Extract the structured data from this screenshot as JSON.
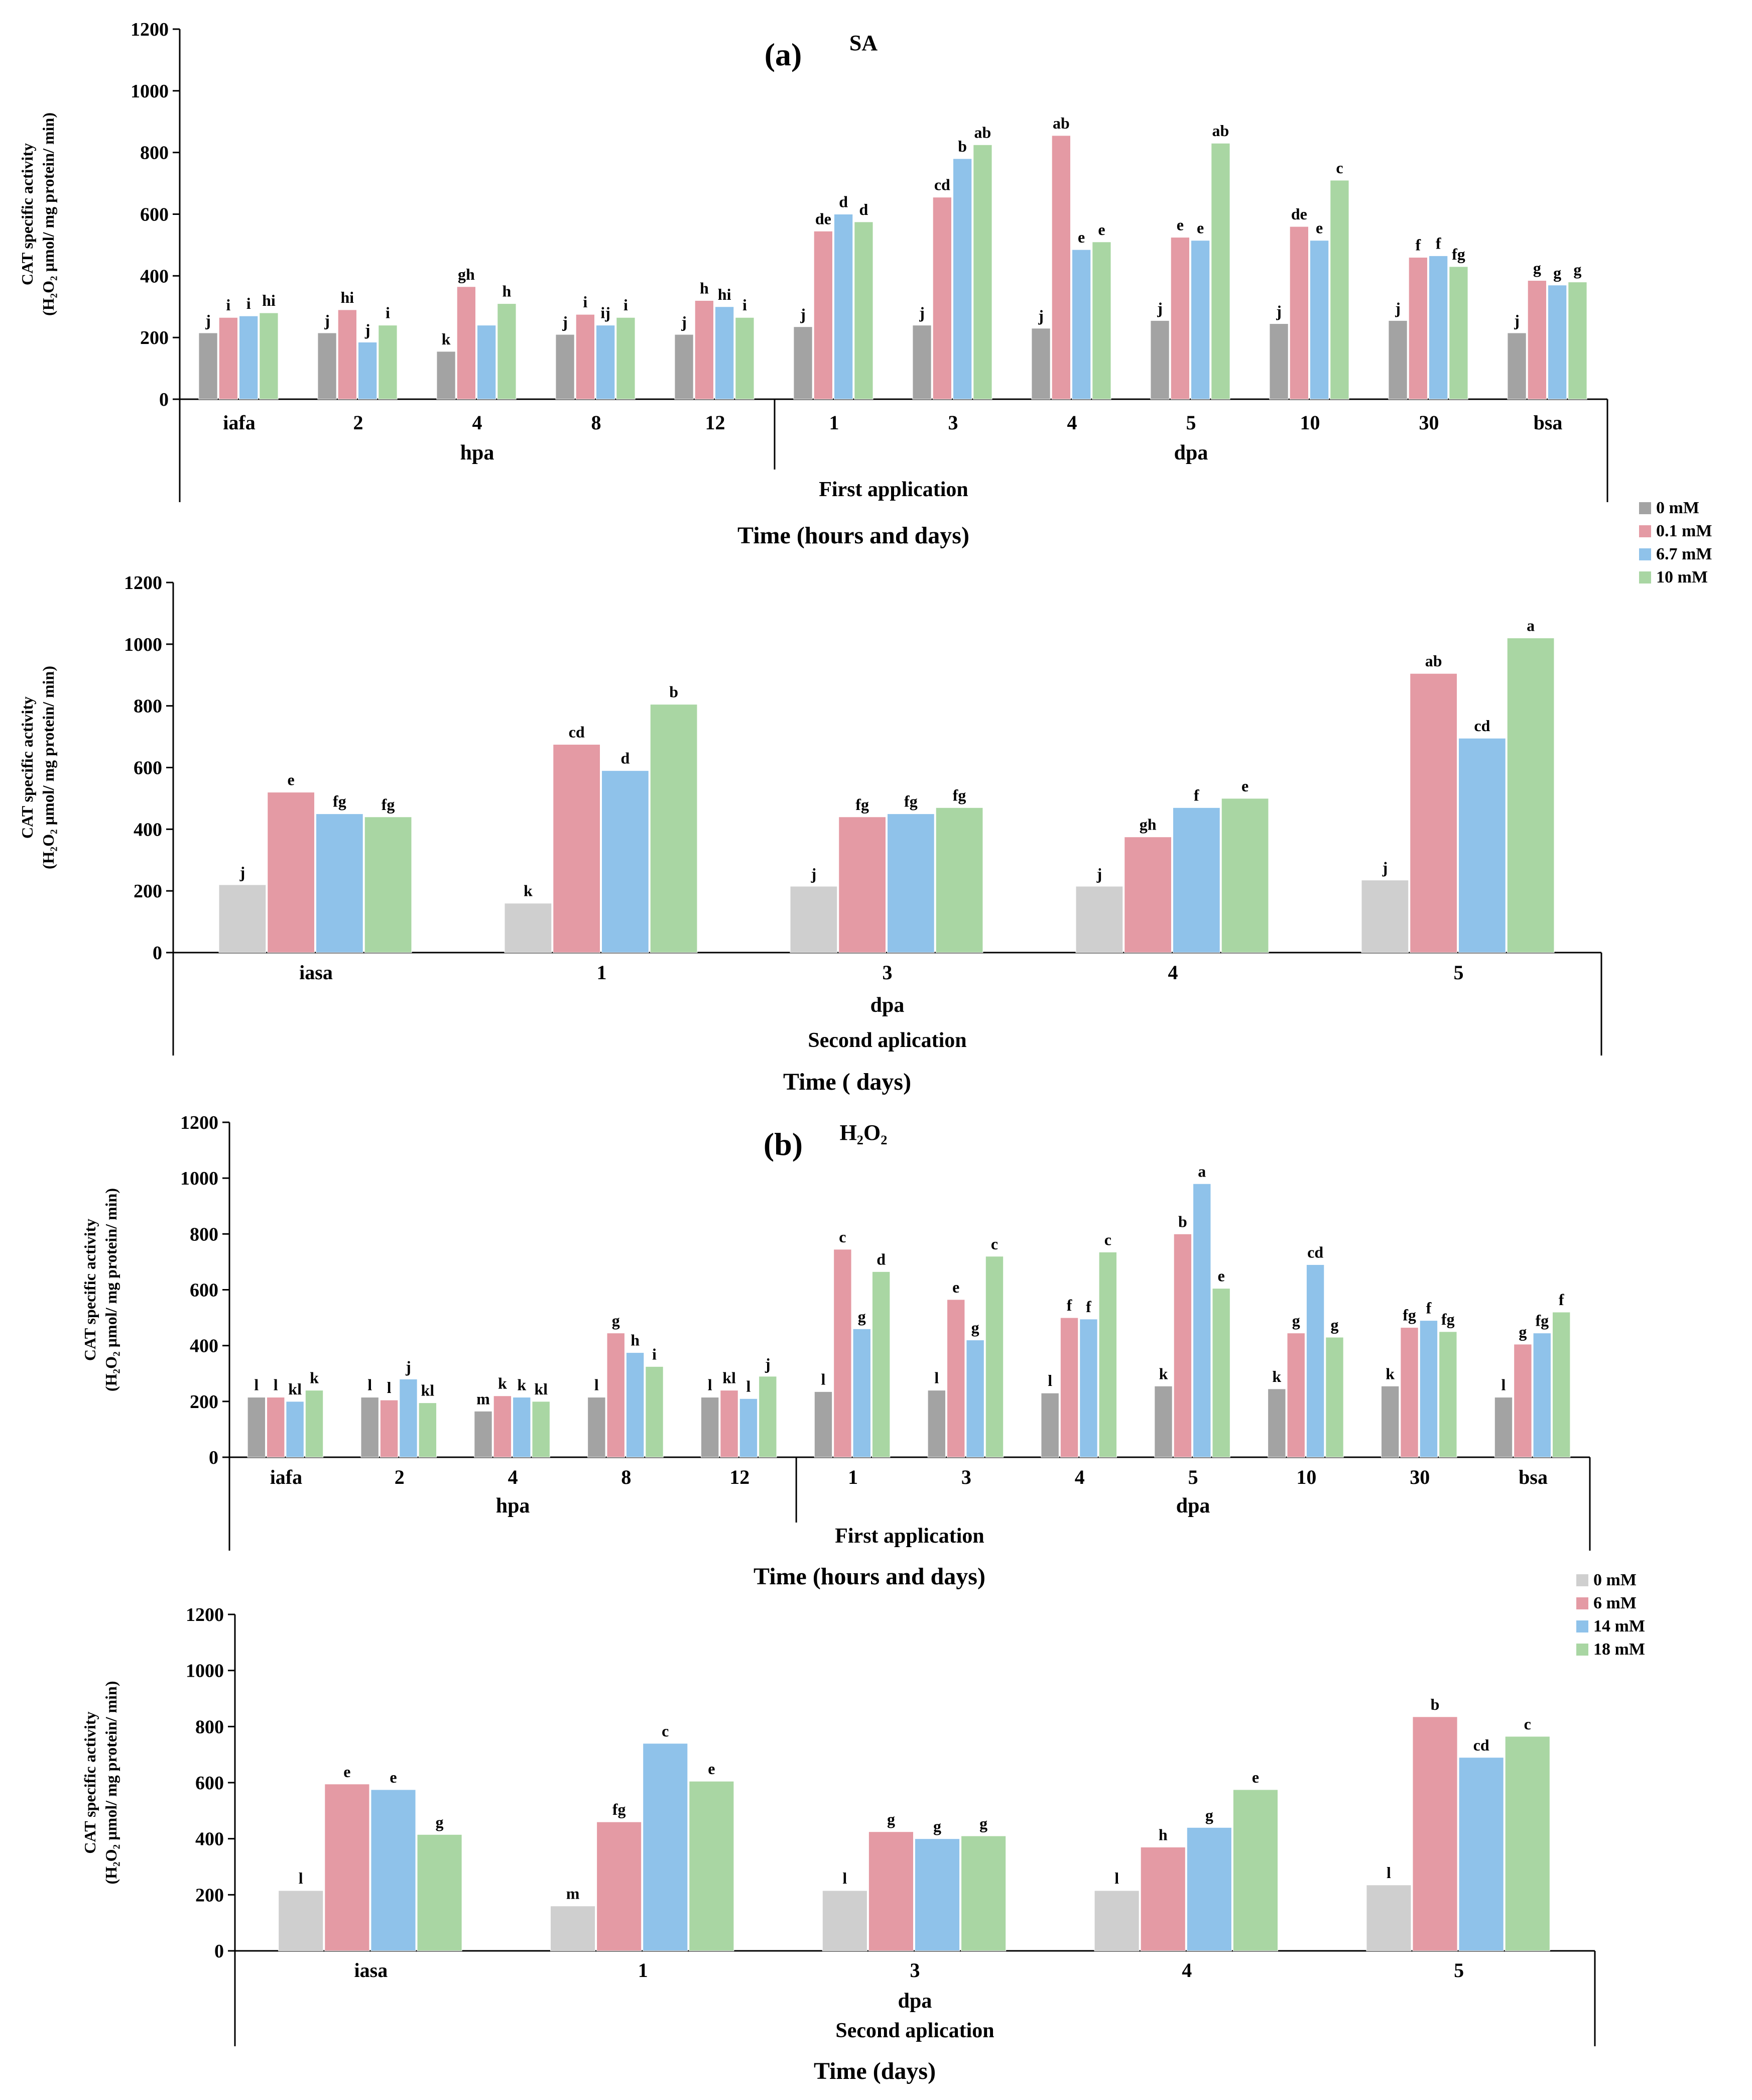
{
  "chart_data": [
    {
      "id": "a1",
      "type": "bar",
      "panel_label": "(a)",
      "title": "SA",
      "ylabel_line1": "CAT specific activity",
      "ylabel_line2": "(H₂O₂ µmol/ mg protein/ min)",
      "xlabel": "Time (hours and days)",
      "ylim": [
        0,
        1200
      ],
      "yticks": [
        0,
        200,
        400,
        600,
        800,
        1000,
        1200
      ],
      "categories": [
        "iafa",
        "2",
        "4",
        "8",
        "12",
        "1",
        "3",
        "4",
        "5",
        "10",
        "30",
        "bsa"
      ],
      "groups": [
        {
          "label": "hpa",
          "start": 0,
          "end": 4
        },
        {
          "label": "dpa",
          "start": 5,
          "end": 11
        }
      ],
      "section_label": "First application",
      "series": [
        {
          "name": "0 mM",
          "values": [
            215,
            215,
            155,
            210,
            210,
            235,
            240,
            230,
            255,
            245,
            255,
            215
          ]
        },
        {
          "name": "0.1 mM",
          "values": [
            265,
            290,
            365,
            275,
            320,
            545,
            655,
            855,
            525,
            560,
            460,
            385
          ]
        },
        {
          "name": "6.7 mM",
          "values": [
            270,
            185,
            240,
            240,
            300,
            600,
            780,
            485,
            515,
            515,
            465,
            370
          ]
        },
        {
          "name": "10 mM",
          "values": [
            280,
            240,
            310,
            265,
            265,
            575,
            825,
            510,
            830,
            710,
            430,
            380
          ]
        }
      ],
      "letters": [
        [
          "j",
          "j",
          "k",
          "j",
          "j",
          "j",
          "j",
          "j",
          "j",
          "j",
          "j",
          "j"
        ],
        [
          "i",
          "hi",
          "gh",
          "i",
          "h",
          "de",
          "cd",
          "ab",
          "e",
          "de",
          "f",
          "g"
        ],
        [
          "i",
          "j",
          "",
          "ij",
          "hi",
          "d",
          "b",
          "e",
          "e",
          "e",
          "f",
          "g"
        ],
        [
          "hi",
          "i",
          "h",
          "i",
          "i",
          "d",
          "ab",
          "e",
          "ab",
          "c",
          "fg",
          "g"
        ]
      ]
    },
    {
      "id": "a2",
      "type": "bar",
      "ylabel_line1": "CAT specific activity",
      "ylabel_line2": "(H₂O₂ µmol/ mg protein/ min)",
      "xlabel": "Time ( days)",
      "ylim": [
        0,
        1200
      ],
      "yticks": [
        0,
        200,
        400,
        600,
        800,
        1000,
        1200
      ],
      "categories": [
        "iasa",
        "1",
        "3",
        "4",
        "5"
      ],
      "groups": [
        {
          "label": "dpa",
          "start": 0,
          "end": 4
        }
      ],
      "section_label": "Second aplication",
      "series": [
        {
          "name": "0 mM",
          "values": [
            220,
            160,
            215,
            215,
            235
          ]
        },
        {
          "name": "0.1 mM",
          "values": [
            520,
            675,
            440,
            375,
            905
          ]
        },
        {
          "name": "6.7 mM",
          "values": [
            450,
            590,
            450,
            470,
            695
          ]
        },
        {
          "name": "10 mM",
          "values": [
            440,
            805,
            470,
            500,
            1020
          ]
        }
      ],
      "letters": [
        [
          "j",
          "k",
          "j",
          "j",
          "j"
        ],
        [
          "e",
          "cd",
          "fg",
          "gh",
          "ab"
        ],
        [
          "fg",
          "d",
          "fg",
          "f",
          "cd"
        ],
        [
          "fg",
          "b",
          "fg",
          "e",
          "a"
        ]
      ]
    },
    {
      "id": "b1",
      "type": "bar",
      "panel_label": "(b)",
      "title": "H₂O₂",
      "ylabel_line1": "CAT specific activity",
      "ylabel_line2": "(H₂O₂ µmol/ mg protein/ min)",
      "xlabel": "Time (hours and days)",
      "ylim": [
        0,
        1200
      ],
      "yticks": [
        0,
        200,
        400,
        600,
        800,
        1000,
        1200
      ],
      "categories": [
        "iafa",
        "2",
        "4",
        "8",
        "12",
        "1",
        "3",
        "4",
        "5",
        "10",
        "30",
        "bsa"
      ],
      "groups": [
        {
          "label": "hpa",
          "start": 0,
          "end": 4
        },
        {
          "label": "dpa",
          "start": 5,
          "end": 11
        }
      ],
      "section_label": "First application",
      "series": [
        {
          "name": "0 mM",
          "values": [
            215,
            215,
            165,
            215,
            215,
            235,
            240,
            230,
            255,
            245,
            255,
            215
          ]
        },
        {
          "name": "6 mM",
          "values": [
            215,
            205,
            220,
            445,
            240,
            745,
            565,
            500,
            800,
            445,
            465,
            405
          ]
        },
        {
          "name": "14 mM",
          "values": [
            200,
            280,
            215,
            375,
            210,
            460,
            420,
            495,
            980,
            690,
            490,
            445
          ]
        },
        {
          "name": "18 mM",
          "values": [
            240,
            195,
            200,
            325,
            290,
            665,
            720,
            735,
            605,
            430,
            450,
            520
          ]
        }
      ],
      "letters": [
        [
          "l",
          "l",
          "m",
          "l",
          "l",
          "l",
          "l",
          "l",
          "k",
          "k",
          "k",
          "l"
        ],
        [
          "l",
          "l",
          "k",
          "g",
          "kl",
          "c",
          "e",
          "f",
          "b",
          "g",
          "fg",
          "g"
        ],
        [
          "kl",
          "j",
          "k",
          "h",
          "l",
          "g",
          "g",
          "f",
          "a",
          "cd",
          "f",
          "fg"
        ],
        [
          "k",
          "kl",
          "kl",
          "i",
          "j",
          "d",
          "c",
          "c",
          "e",
          "g",
          "fg",
          "f"
        ]
      ]
    },
    {
      "id": "b2",
      "type": "bar",
      "ylabel_line1": "CAT specific activity",
      "ylabel_line2": "(H₂O₂ µmol/ mg protein/ min)",
      "xlabel": "Time (days)",
      "ylim": [
        0,
        1200
      ],
      "yticks": [
        0,
        200,
        400,
        600,
        800,
        1000,
        1200
      ],
      "categories": [
        "iasa",
        "1",
        "3",
        "4",
        "5"
      ],
      "groups": [
        {
          "label": "dpa",
          "start": 0,
          "end": 4
        }
      ],
      "section_label": "Second aplication",
      "series": [
        {
          "name": "0 mM",
          "values": [
            215,
            160,
            215,
            215,
            235
          ]
        },
        {
          "name": "6 mM",
          "values": [
            595,
            460,
            425,
            370,
            835
          ]
        },
        {
          "name": "14 mM",
          "values": [
            575,
            740,
            400,
            440,
            690
          ]
        },
        {
          "name": "18 mM",
          "values": [
            415,
            605,
            410,
            575,
            765
          ]
        }
      ],
      "letters": [
        [
          "l",
          "m",
          "l",
          "l",
          "l"
        ],
        [
          "e",
          "fg",
          "g",
          "h",
          "b"
        ],
        [
          "e",
          "c",
          "g",
          "g",
          "cd"
        ],
        [
          "g",
          "e",
          "g",
          "e",
          "c"
        ]
      ]
    }
  ],
  "legends": [
    {
      "id": "legend-a",
      "items": [
        "0 mM",
        "0.1 mM",
        "6.7 mM",
        "10 mM"
      ]
    },
    {
      "id": "legend-b",
      "items": [
        "0 mM",
        "6 mM",
        "14 mM",
        "18 mM"
      ]
    }
  ],
  "colors": {
    "series": [
      "#a3a3a3",
      "#e49aa4",
      "#8fc2ea",
      "#a9d6a3"
    ],
    "series_second": [
      "#cfcfcf",
      "#e49aa4",
      "#8fc2ea",
      "#a9d6a3"
    ],
    "axis": "#000000"
  }
}
